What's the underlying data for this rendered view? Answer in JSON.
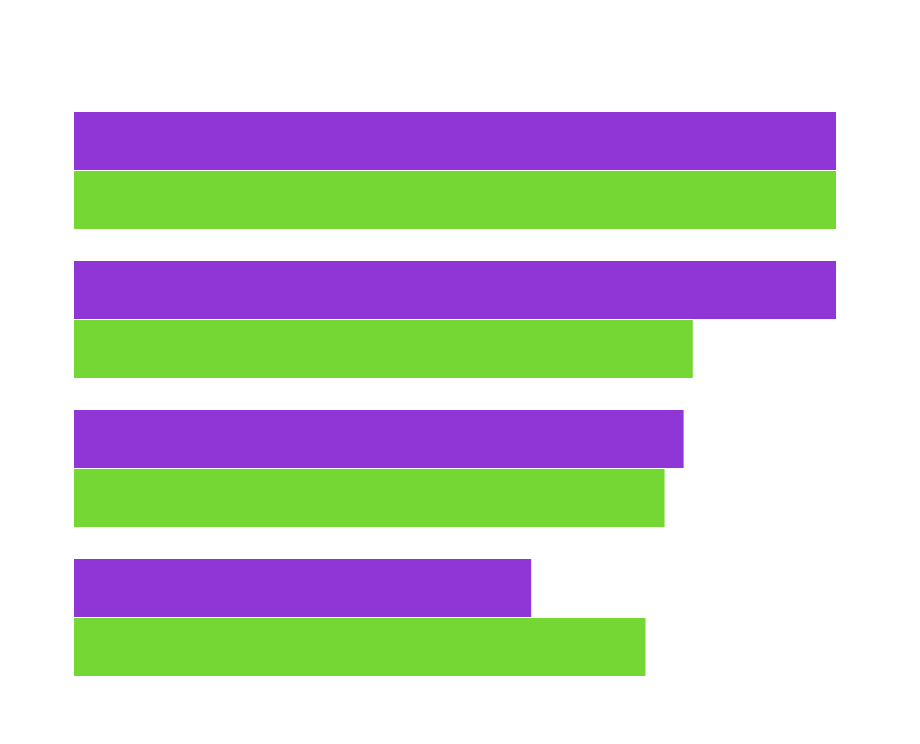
{
  "chart_data": {
    "type": "bar",
    "orientation": "horizontal",
    "title": "",
    "xlabel": "",
    "ylabel": "",
    "categories": [
      "",
      "",
      "",
      ""
    ],
    "xlim": [
      0,
      100
    ],
    "grid": false,
    "legend": "none",
    "series": [
      {
        "color": "#9035d6",
        "values": [
          100,
          100,
          80,
          60
        ]
      },
      {
        "color": "#74d734",
        "values": [
          100,
          81.2,
          77.5,
          75
        ]
      }
    ]
  }
}
